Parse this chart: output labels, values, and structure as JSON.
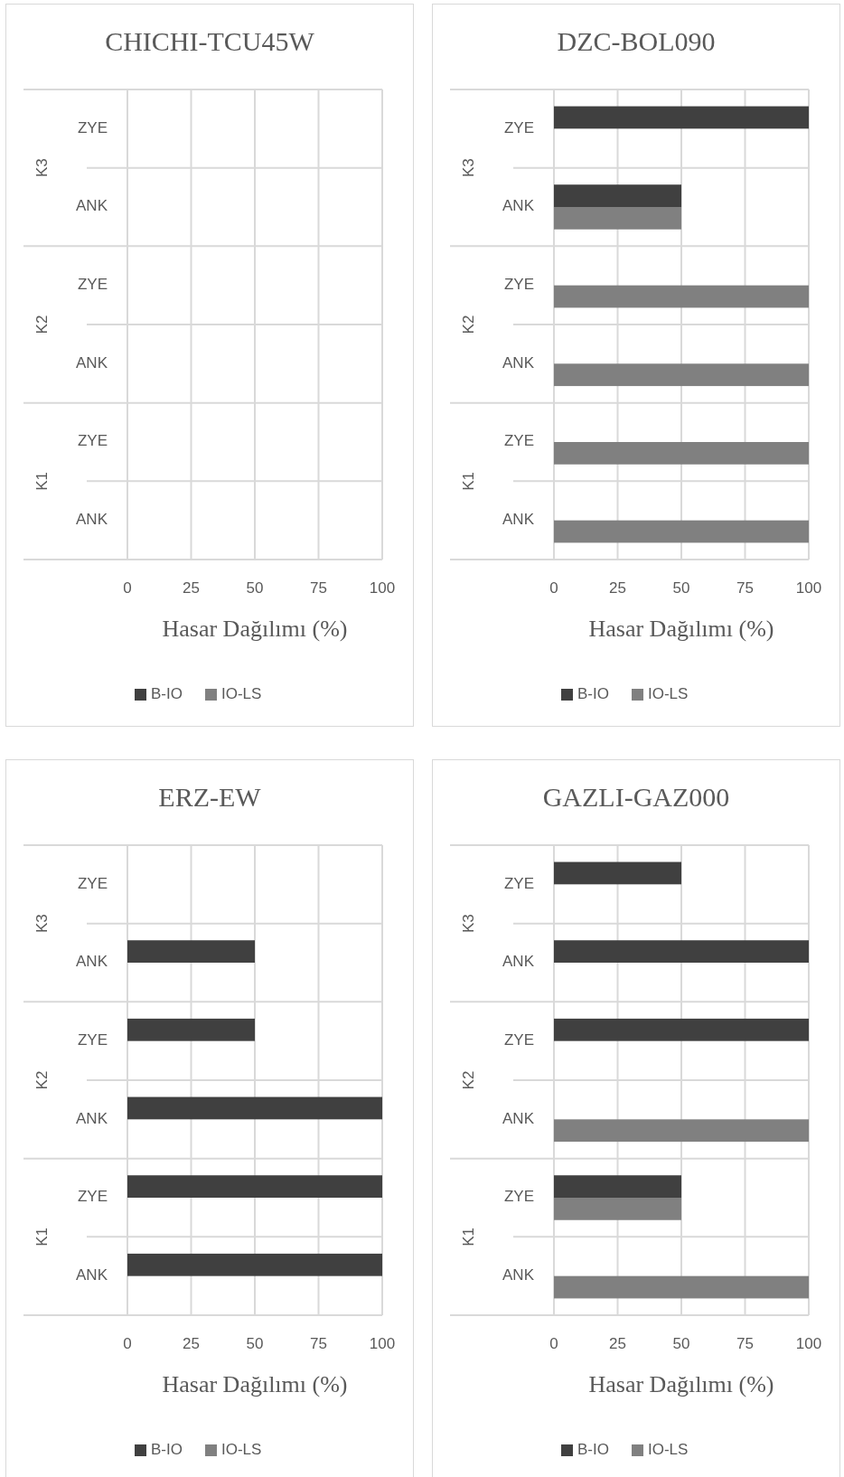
{
  "chart_data": [
    {
      "type": "bar",
      "orientation": "horizontal",
      "title": "CHICHI-TCU45W",
      "xlabel": "Hasar Dağılımı (%)",
      "categories": [
        "ZYE",
        "ANK",
        "ZYE",
        "ANK",
        "ZYE",
        "ANK"
      ],
      "annotations": [
        "K3",
        "K2",
        "K1"
      ],
      "xlim": [
        0,
        100
      ],
      "xticks": [
        0,
        25,
        50,
        75,
        100
      ],
      "grid": "x",
      "legend": "bottom",
      "series": [
        {
          "name": "B-IO",
          "color": "#404040",
          "values": [
            0,
            0,
            0,
            0,
            0,
            0
          ]
        },
        {
          "name": "IO-LS",
          "color": "#808080",
          "values": [
            0,
            0,
            0,
            0,
            0,
            0
          ]
        }
      ]
    },
    {
      "type": "bar",
      "orientation": "horizontal",
      "title": "DZC-BOL090",
      "xlabel": "Hasar Dağılımı (%)",
      "categories": [
        "ZYE",
        "ANK",
        "ZYE",
        "ANK",
        "ZYE",
        "ANK"
      ],
      "annotations": [
        "K3",
        "K2",
        "K1"
      ],
      "xlim": [
        0,
        100
      ],
      "xticks": [
        0,
        25,
        50,
        75,
        100
      ],
      "grid": "x",
      "legend": "bottom",
      "series": [
        {
          "name": "B-IO",
          "color": "#404040",
          "values": [
            100,
            50,
            0,
            0,
            0,
            0
          ]
        },
        {
          "name": "IO-LS",
          "color": "#808080",
          "values": [
            0,
            50,
            100,
            100,
            100,
            100
          ]
        }
      ]
    },
    {
      "type": "bar",
      "orientation": "horizontal",
      "title": "ERZ-EW",
      "xlabel": "Hasar Dağılımı (%)",
      "categories": [
        "ZYE",
        "ANK",
        "ZYE",
        "ANK",
        "ZYE",
        "ANK"
      ],
      "annotations": [
        "K3",
        "K2",
        "K1"
      ],
      "xlim": [
        0,
        100
      ],
      "xticks": [
        0,
        25,
        50,
        75,
        100
      ],
      "grid": "x",
      "legend": "bottom",
      "series": [
        {
          "name": "B-IO",
          "color": "#404040",
          "values": [
            0,
            50,
            50,
            100,
            100,
            100
          ]
        },
        {
          "name": "IO-LS",
          "color": "#808080",
          "values": [
            0,
            0,
            0,
            0,
            0,
            0
          ]
        }
      ]
    },
    {
      "type": "bar",
      "orientation": "horizontal",
      "title": "GAZLI-GAZ000",
      "xlabel": "Hasar Dağılımı (%)",
      "categories": [
        "ZYE",
        "ANK",
        "ZYE",
        "ANK",
        "ZYE",
        "ANK"
      ],
      "annotations": [
        "K3",
        "K2",
        "K1"
      ],
      "xlim": [
        0,
        100
      ],
      "xticks": [
        0,
        25,
        50,
        75,
        100
      ],
      "grid": "x",
      "legend": "bottom",
      "series": [
        {
          "name": "B-IO",
          "color": "#404040",
          "values": [
            50,
            100,
            100,
            0,
            50,
            0
          ]
        },
        {
          "name": "IO-LS",
          "color": "#808080",
          "values": [
            0,
            0,
            0,
            100,
            50,
            100
          ]
        }
      ]
    }
  ]
}
